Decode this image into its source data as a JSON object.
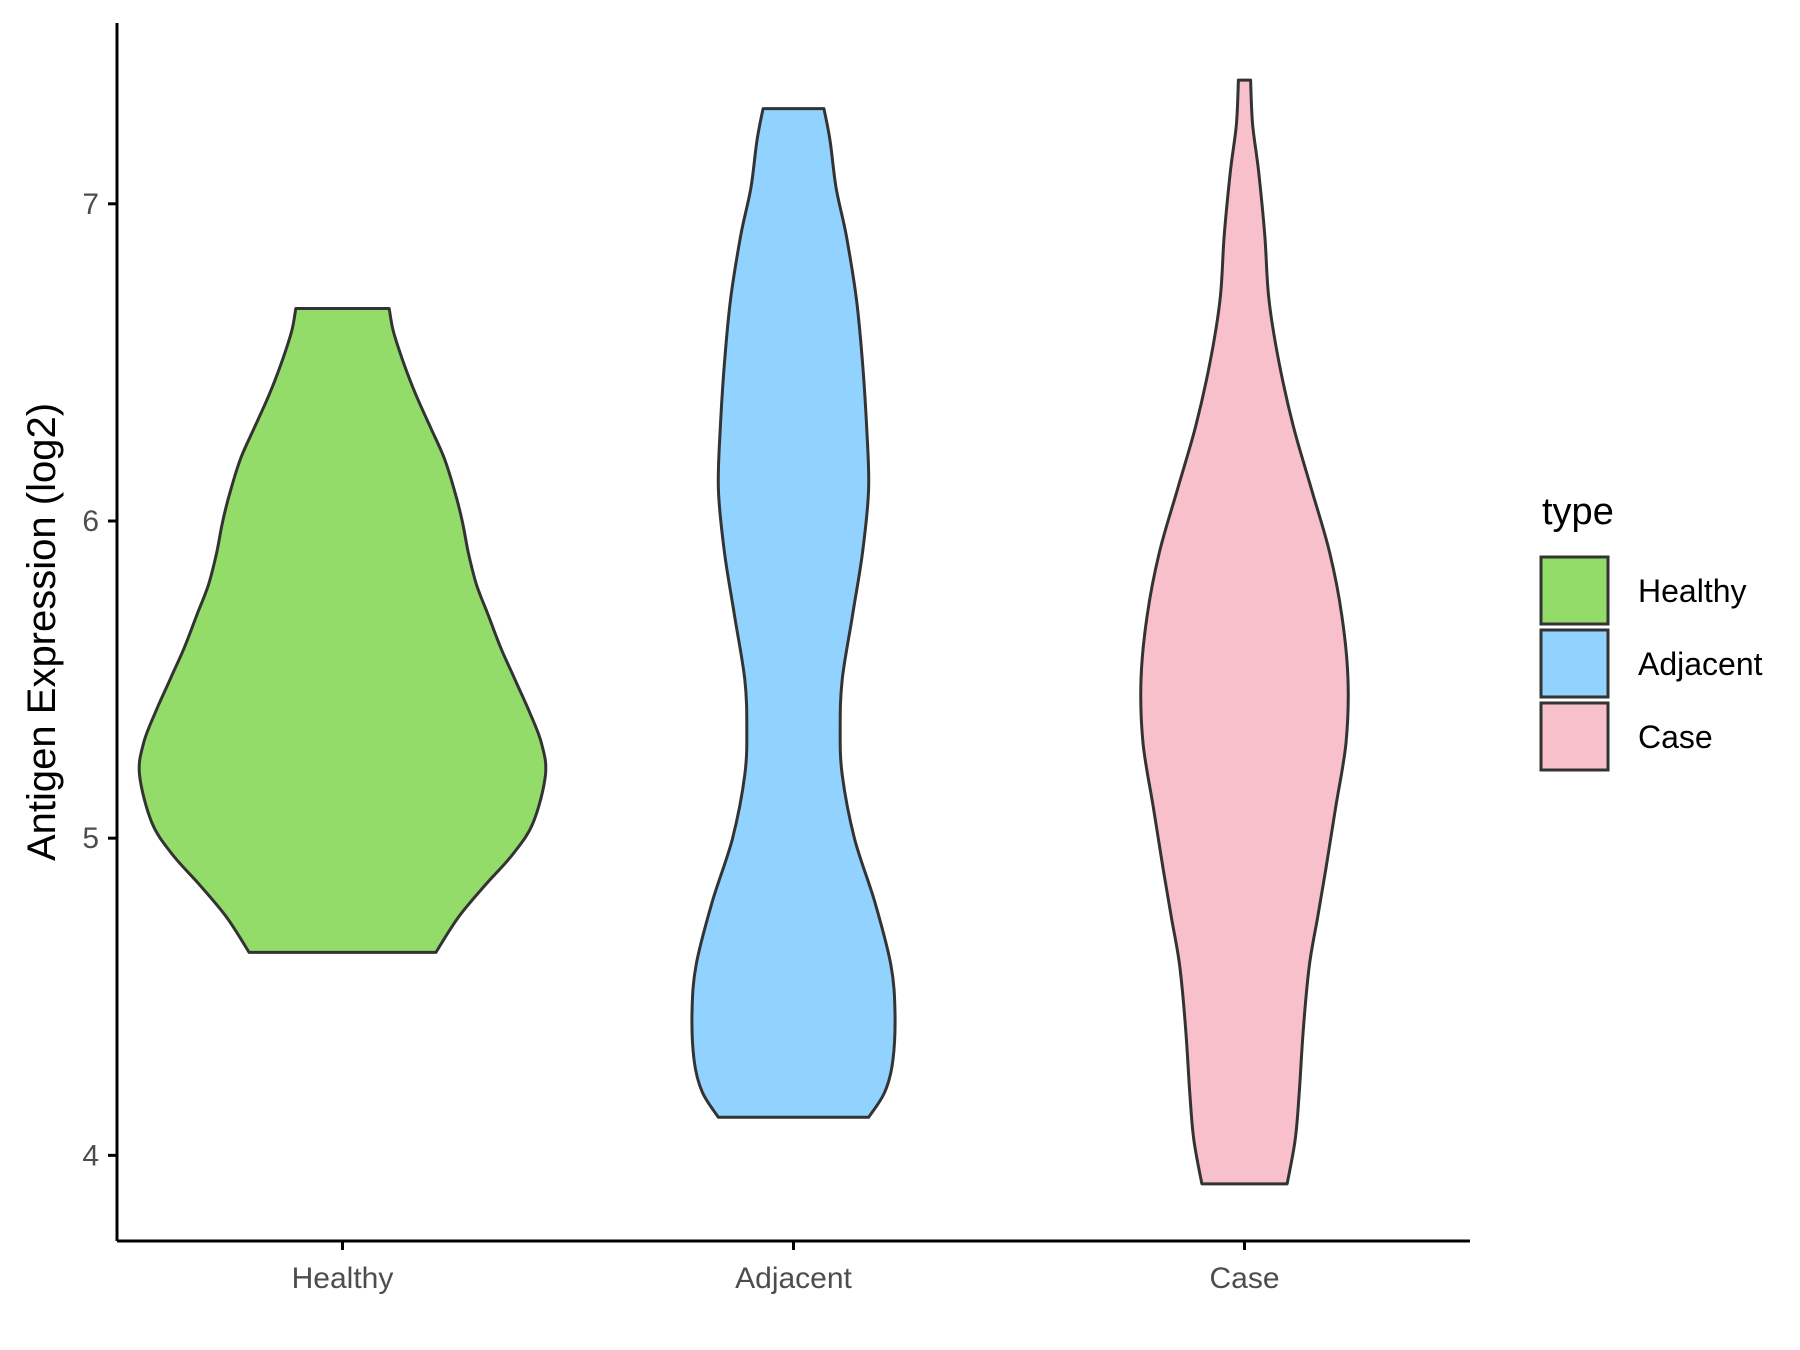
{
  "chart_data": {
    "type": "violin",
    "ylabel": "Antigen Expression (log2)",
    "xlabel": "",
    "categories": [
      "Healthy",
      "Adjacent",
      "Case"
    ],
    "ylim": [
      3.73,
      7.57
    ],
    "yticks": [
      4,
      5,
      6,
      7
    ],
    "legend": {
      "title": "type",
      "placement": "right",
      "entries": [
        "Healthy",
        "Adjacent",
        "Case"
      ]
    },
    "grid": false,
    "series": [
      {
        "category": "Healthy",
        "color": "#93dc6a",
        "min": 4.64,
        "max": 6.67,
        "profile": [
          [
            4.64,
            0.46
          ],
          [
            4.75,
            0.57
          ],
          [
            4.85,
            0.7
          ],
          [
            4.95,
            0.84
          ],
          [
            5.05,
            0.94
          ],
          [
            5.2,
            1.0
          ],
          [
            5.3,
            0.98
          ],
          [
            5.4,
            0.92
          ],
          [
            5.5,
            0.85
          ],
          [
            5.6,
            0.78
          ],
          [
            5.7,
            0.72
          ],
          [
            5.8,
            0.66
          ],
          [
            5.9,
            0.62
          ],
          [
            6.0,
            0.59
          ],
          [
            6.1,
            0.55
          ],
          [
            6.2,
            0.5
          ],
          [
            6.3,
            0.43
          ],
          [
            6.4,
            0.36
          ],
          [
            6.5,
            0.3
          ],
          [
            6.6,
            0.25
          ],
          [
            6.67,
            0.23
          ]
        ]
      },
      {
        "category": "Adjacent",
        "color": "#92d2fe",
        "min": 4.12,
        "max": 7.3,
        "profile": [
          [
            4.12,
            0.37
          ],
          [
            4.2,
            0.45
          ],
          [
            4.3,
            0.49
          ],
          [
            4.45,
            0.5
          ],
          [
            4.6,
            0.48
          ],
          [
            4.8,
            0.4
          ],
          [
            5.0,
            0.3
          ],
          [
            5.2,
            0.24
          ],
          [
            5.35,
            0.23
          ],
          [
            5.5,
            0.24
          ],
          [
            5.7,
            0.29
          ],
          [
            5.9,
            0.34
          ],
          [
            6.1,
            0.37
          ],
          [
            6.3,
            0.36
          ],
          [
            6.5,
            0.34
          ],
          [
            6.7,
            0.31
          ],
          [
            6.9,
            0.26
          ],
          [
            7.05,
            0.21
          ],
          [
            7.2,
            0.18
          ],
          [
            7.3,
            0.15
          ]
        ]
      },
      {
        "category": "Case",
        "color": "#f7c0cb",
        "min": 3.91,
        "max": 7.39,
        "profile": [
          [
            3.91,
            0.21
          ],
          [
            4.05,
            0.25
          ],
          [
            4.2,
            0.27
          ],
          [
            4.4,
            0.29
          ],
          [
            4.6,
            0.32
          ],
          [
            4.75,
            0.36
          ],
          [
            4.9,
            0.4
          ],
          [
            5.1,
            0.45
          ],
          [
            5.3,
            0.5
          ],
          [
            5.5,
            0.51
          ],
          [
            5.7,
            0.48
          ],
          [
            5.9,
            0.42
          ],
          [
            6.1,
            0.33
          ],
          [
            6.3,
            0.24
          ],
          [
            6.5,
            0.17
          ],
          [
            6.7,
            0.12
          ],
          [
            6.9,
            0.1
          ],
          [
            7.1,
            0.07
          ],
          [
            7.25,
            0.04
          ],
          [
            7.39,
            0.03
          ]
        ]
      }
    ]
  },
  "colors": {
    "outline": "#333333",
    "axis": "#000000",
    "tick_text": "#4d4d4d"
  }
}
